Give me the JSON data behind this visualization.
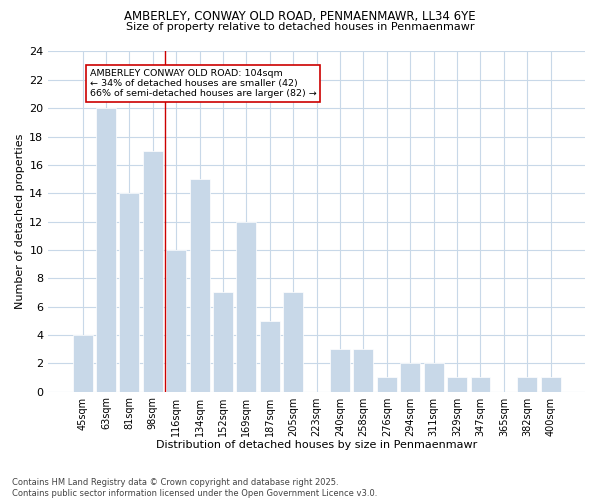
{
  "title_line1": "AMBERLEY, CONWAY OLD ROAD, PENMAENMAWR, LL34 6YE",
  "title_line2": "Size of property relative to detached houses in Penmaenmawr",
  "xlabel": "Distribution of detached houses by size in Penmaenmawr",
  "ylabel": "Number of detached properties",
  "categories": [
    "45sqm",
    "63sqm",
    "81sqm",
    "98sqm",
    "116sqm",
    "134sqm",
    "152sqm",
    "169sqm",
    "187sqm",
    "205sqm",
    "223sqm",
    "240sqm",
    "258sqm",
    "276sqm",
    "294sqm",
    "311sqm",
    "329sqm",
    "347sqm",
    "365sqm",
    "382sqm",
    "400sqm"
  ],
  "values": [
    4,
    20,
    14,
    17,
    10,
    15,
    7,
    12,
    5,
    7,
    0,
    3,
    3,
    1,
    2,
    2,
    1,
    1,
    0,
    1,
    1
  ],
  "bar_color": "#c8d8e8",
  "bar_edge_color": "#ffffff",
  "background_color": "#ffffff",
  "grid_color": "#c8d8e8",
  "vline_x": 3.5,
  "vline_color": "#cc0000",
  "annotation_text": "AMBERLEY CONWAY OLD ROAD: 104sqm\n← 34% of detached houses are smaller (42)\n66% of semi-detached houses are larger (82) →",
  "footer_text": "Contains HM Land Registry data © Crown copyright and database right 2025.\nContains public sector information licensed under the Open Government Licence v3.0.",
  "ylim": [
    0,
    24
  ],
  "yticks": [
    0,
    2,
    4,
    6,
    8,
    10,
    12,
    14,
    16,
    18,
    20,
    22,
    24
  ]
}
